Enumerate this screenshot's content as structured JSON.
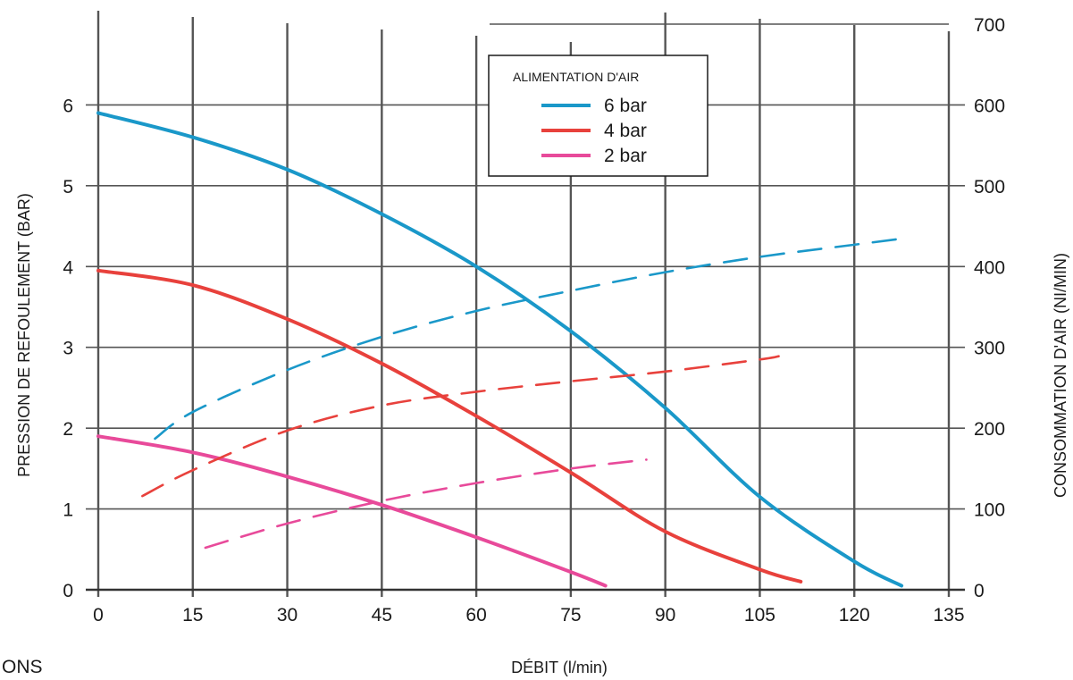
{
  "chart_data": {
    "type": "line",
    "xlabel": "DÉBIT (l/min)",
    "ylabel_left": "PRESSION DE REFOULEMENT (BAR)",
    "ylabel_right": "CONSOMMATION D'AIR (NI/MIN)",
    "xlim": [
      0,
      135
    ],
    "ylim_left": [
      0,
      7
    ],
    "ylim_right": [
      0,
      700
    ],
    "x_ticks": [
      0,
      15,
      30,
      45,
      60,
      75,
      90,
      105,
      120,
      135
    ],
    "y_ticks_left": [
      0,
      1,
      2,
      3,
      4,
      5,
      6
    ],
    "y_ticks_right": [
      0,
      100,
      200,
      300,
      400,
      500,
      600,
      700
    ],
    "grid": true,
    "legend": {
      "title": "ALIMENTATION D'AIR",
      "position": "top-center",
      "entries": [
        {
          "label": "6 bar",
          "color": "#1a98c9"
        },
        {
          "label": "4 bar",
          "color": "#e8413c"
        },
        {
          "label": "2 bar",
          "color": "#e84a9a"
        }
      ]
    },
    "series": [
      {
        "name": "6 bar",
        "kind": "pressure",
        "axis": "left",
        "style": "solid",
        "color": "#1a98c9",
        "points": [
          [
            0,
            5.9
          ],
          [
            15,
            5.6
          ],
          [
            30,
            5.2
          ],
          [
            45,
            4.65
          ],
          [
            60,
            4.0
          ],
          [
            75,
            3.2
          ],
          [
            90,
            2.25
          ],
          [
            105,
            1.15
          ],
          [
            120,
            0.35
          ],
          [
            127.5,
            0.05
          ]
        ]
      },
      {
        "name": "4 bar",
        "kind": "pressure",
        "axis": "left",
        "style": "solid",
        "color": "#e8413c",
        "points": [
          [
            0,
            3.95
          ],
          [
            15,
            3.77
          ],
          [
            30,
            3.35
          ],
          [
            45,
            2.8
          ],
          [
            60,
            2.15
          ],
          [
            75,
            1.45
          ],
          [
            90,
            0.72
          ],
          [
            105,
            0.25
          ],
          [
            111.5,
            0.1
          ]
        ]
      },
      {
        "name": "2 bar",
        "kind": "pressure",
        "axis": "left",
        "style": "solid",
        "color": "#e84a9a",
        "points": [
          [
            0,
            1.9
          ],
          [
            15,
            1.7
          ],
          [
            30,
            1.4
          ],
          [
            45,
            1.05
          ],
          [
            60,
            0.65
          ],
          [
            75,
            0.22
          ],
          [
            80.5,
            0.05
          ]
        ]
      },
      {
        "name": "6 bar",
        "kind": "air_consumption",
        "axis": "right",
        "style": "dashed",
        "color": "#1a98c9",
        "points": [
          [
            9,
            187
          ],
          [
            15,
            220
          ],
          [
            30,
            272
          ],
          [
            45,
            313
          ],
          [
            60,
            345
          ],
          [
            75,
            370
          ],
          [
            90,
            393
          ],
          [
            105,
            412
          ],
          [
            120,
            427
          ],
          [
            128,
            435
          ]
        ]
      },
      {
        "name": "4 bar",
        "kind": "air_consumption",
        "axis": "right",
        "style": "dashed",
        "color": "#e8413c",
        "points": [
          [
            7,
            116
          ],
          [
            15,
            148
          ],
          [
            30,
            197
          ],
          [
            45,
            228
          ],
          [
            60,
            245
          ],
          [
            75,
            258
          ],
          [
            90,
            270
          ],
          [
            105,
            285
          ],
          [
            108,
            289
          ]
        ]
      },
      {
        "name": "2 bar",
        "kind": "air_consumption",
        "axis": "right",
        "style": "dashed",
        "color": "#e84a9a",
        "points": [
          [
            17,
            52
          ],
          [
            30,
            82
          ],
          [
            45,
            110
          ],
          [
            60,
            132
          ],
          [
            75,
            150
          ],
          [
            87,
            161
          ]
        ]
      }
    ]
  },
  "clipped_text": "ONS"
}
